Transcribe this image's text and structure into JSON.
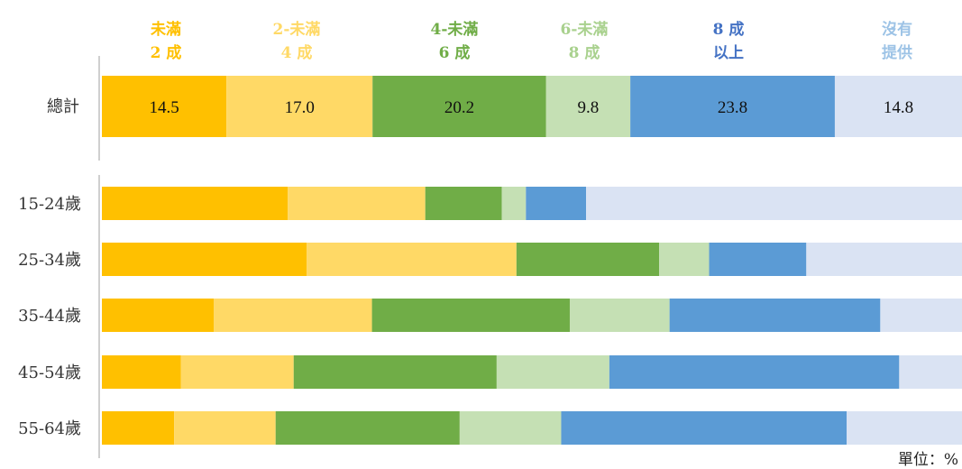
{
  "chart_data": {
    "type": "bar",
    "orientation": "horizontal",
    "stacked": true,
    "percent": true,
    "unit_label": "單位：%",
    "series": [
      {
        "name_line1": "未滿",
        "name_line2": "2 成",
        "color": "#FFC000"
      },
      {
        "name_line1": "2-未滿",
        "name_line2": "4 成",
        "color": "#FFD966"
      },
      {
        "name_line1": "4-未滿",
        "name_line2": "6 成",
        "color": "#70AD47"
      },
      {
        "name_line1": "6-未滿",
        "name_line2": "8 成",
        "color": "#C5E0B4"
      },
      {
        "name_line1": "8 成",
        "name_line2": "以上",
        "color": "#5B9BD5"
      },
      {
        "name_line1": "沒有",
        "name_line2": "提供",
        "color": "#DAE3F3"
      }
    ],
    "legend_text_colors": [
      "#FFC000",
      "#FFD966",
      "#70AD47",
      "#A9D18E",
      "#4472C4",
      "#9DC3E6"
    ],
    "total": {
      "label": "總計",
      "values": [
        14.5,
        17.0,
        20.2,
        9.8,
        23.8,
        14.8
      ],
      "value_labels": [
        "14.5",
        "17.0",
        "20.2",
        "9.8",
        "23.8",
        "14.8"
      ]
    },
    "groups": [
      {
        "label": "15-24歲",
        "values": [
          21.6,
          16.0,
          8.9,
          2.8,
          7.0,
          43.7
        ]
      },
      {
        "label": "25-34歲",
        "values": [
          23.8,
          24.4,
          16.6,
          5.8,
          11.3,
          18.1
        ]
      },
      {
        "label": "35-44歲",
        "values": [
          13.0,
          18.4,
          23.0,
          11.6,
          24.5,
          9.5
        ]
      },
      {
        "label": "45-54歲",
        "values": [
          9.2,
          13.1,
          23.6,
          13.1,
          33.7,
          7.3
        ]
      },
      {
        "label": "55-64歲",
        "values": [
          8.4,
          11.8,
          21.4,
          11.8,
          33.2,
          13.4
        ]
      }
    ]
  }
}
